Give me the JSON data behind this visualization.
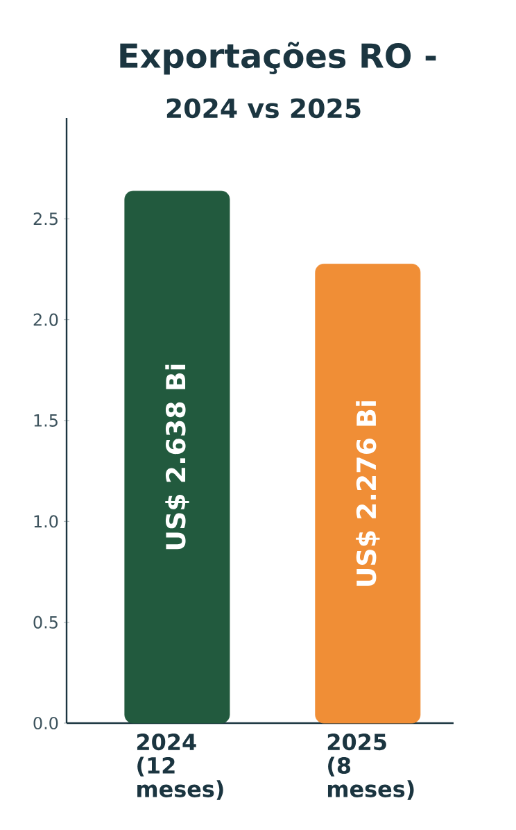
{
  "chart_data": {
    "type": "bar",
    "title": "Exportações RO -",
    "subtitle": "2024 vs 2025",
    "categories": [
      "2024 (12 meses)",
      "2025 (8 meses)"
    ],
    "values": [
      2.638,
      2.276
    ],
    "colors": [
      "#225a3e",
      "#f08e36"
    ],
    "value_labels": [
      "US$ 2.638 Bi",
      "US$ 2.276 Bi"
    ],
    "ylim": [
      0,
      3
    ],
    "yticks": [
      {
        "value": 0,
        "label": "0.0"
      },
      0.5,
      {
        "value": 1,
        "label": "1.0"
      },
      1.5,
      {
        "value": 2,
        "label": "2.0"
      },
      2.5
    ],
    "grid": false
  }
}
